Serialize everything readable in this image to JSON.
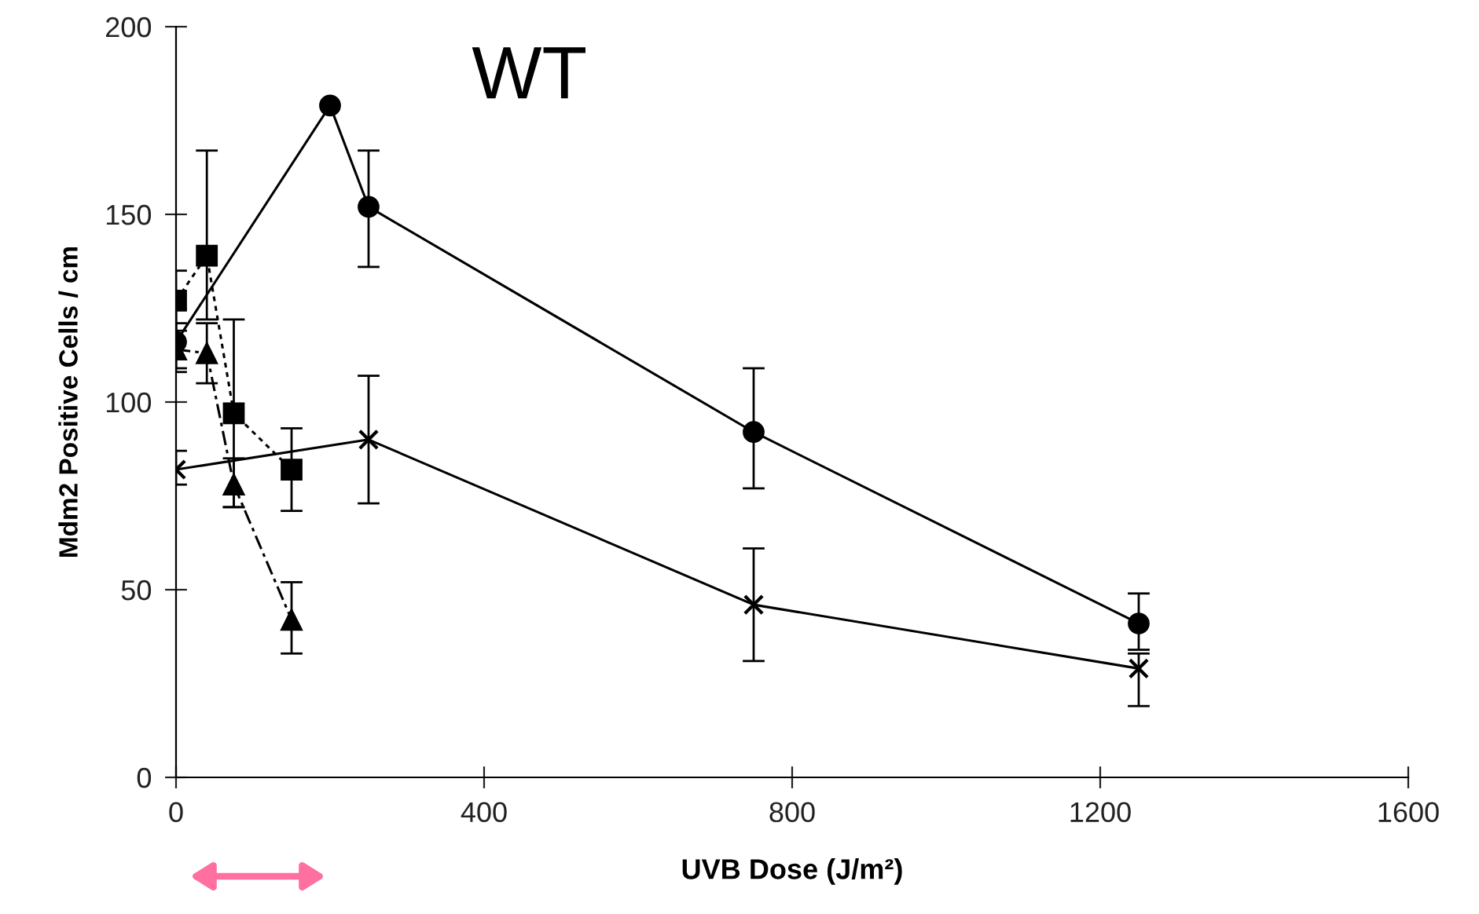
{
  "chart_data": {
    "type": "line",
    "title": "WT",
    "xlabel": "UVB Dose (J/m²)",
    "ylabel": "Mdm2 Positive Cells / cm",
    "xlim": [
      0,
      1600
    ],
    "xticks": [
      0,
      400,
      800,
      1200,
      1600
    ],
    "ylim": [
      0,
      200
    ],
    "yticks": [
      0,
      50,
      100,
      150,
      200
    ],
    "grid": false,
    "legend": false,
    "series": [
      {
        "color": "#000000",
        "marker": "circle",
        "line_style": "solid",
        "x": [
          0,
          200,
          250,
          750,
          1250
        ],
        "values": [
          116,
          179,
          152,
          92,
          41
        ],
        "errors": [
          [
            108,
            125
          ],
          null,
          [
            136,
            167
          ],
          [
            77,
            109
          ],
          [
            34,
            49
          ]
        ]
      },
      {
        "color": "#000000",
        "marker": "cross",
        "line_style": "solid",
        "x": [
          0,
          250,
          750,
          1250
        ],
        "values": [
          82,
          90,
          46,
          29
        ],
        "errors": [
          [
            78,
            87
          ],
          [
            73,
            107
          ],
          [
            31,
            61
          ],
          [
            19,
            33
          ]
        ]
      },
      {
        "color": "#000000",
        "marker": "square",
        "line_style": "dotted",
        "x": [
          0,
          40,
          75,
          150
        ],
        "values": [
          127,
          139,
          97,
          82
        ],
        "errors": [
          [
            119,
            135
          ],
          [
            122,
            167
          ],
          [
            72,
            122
          ],
          [
            71,
            93
          ]
        ]
      },
      {
        "color": "#000000",
        "marker": "triangle",
        "line_style": "dashed",
        "x": [
          0,
          40,
          75,
          150
        ],
        "values": [
          114,
          113,
          78,
          42
        ],
        "errors": [
          [
            109,
            121
          ],
          [
            105,
            121
          ],
          [
            72,
            85
          ],
          [
            33,
            52
          ]
        ]
      }
    ]
  }
}
